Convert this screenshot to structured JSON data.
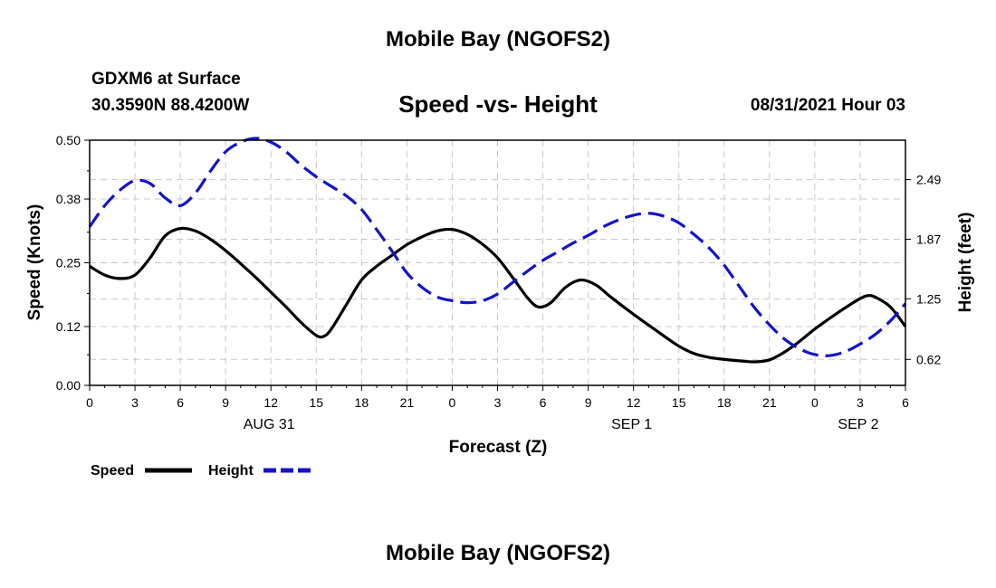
{
  "header": {
    "title": "Mobile Bay (NGOFS2)",
    "station": "GDXM6 at Surface",
    "coords": "30.3590N  88.4200W",
    "subtitle": "Speed -vs- Height",
    "datetime": "08/31/2021 Hour 03"
  },
  "footer": {
    "title": "Mobile Bay (NGOFS2)"
  },
  "chart_data": {
    "type": "line",
    "title": "Speed -vs- Height",
    "xlabel": "Forecast (Z)",
    "ylabel_left": "Speed (Knots)",
    "ylabel_right": "Height (feet)",
    "x_range": [
      0,
      54
    ],
    "x_unit": "hours from 08/31 00Z",
    "x_ticks": [
      {
        "h": 0,
        "label": "0"
      },
      {
        "h": 3,
        "label": "3"
      },
      {
        "h": 6,
        "label": "6"
      },
      {
        "h": 9,
        "label": "9"
      },
      {
        "h": 12,
        "label": "12"
      },
      {
        "h": 15,
        "label": "15"
      },
      {
        "h": 18,
        "label": "18"
      },
      {
        "h": 21,
        "label": "21"
      },
      {
        "h": 24,
        "label": "0"
      },
      {
        "h": 27,
        "label": "3"
      },
      {
        "h": 30,
        "label": "6"
      },
      {
        "h": 33,
        "label": "9"
      },
      {
        "h": 36,
        "label": "12"
      },
      {
        "h": 39,
        "label": "15"
      },
      {
        "h": 42,
        "label": "18"
      },
      {
        "h": 45,
        "label": "21"
      },
      {
        "h": 48,
        "label": "0"
      },
      {
        "h": 51,
        "label": "3"
      },
      {
        "h": 54,
        "label": "6"
      }
    ],
    "date_labels": [
      {
        "h": 12,
        "label": "AUG 31"
      },
      {
        "h": 36,
        "label": "SEP 1"
      },
      {
        "h": 51,
        "label": "SEP 2"
      }
    ],
    "y_left": {
      "range": [
        0,
        0.5
      ],
      "ticks": [
        "0.00",
        "0.12",
        "0.25",
        "0.38",
        "0.50"
      ]
    },
    "y_right": {
      "range": [
        0.35,
        2.9
      ],
      "ticks": [
        "0.62",
        "1.25",
        "1.87",
        "2.49"
      ]
    },
    "grid": true,
    "legend_position": "bottom-left",
    "series": [
      {
        "name": "Speed",
        "axis": "left",
        "color": "#000000",
        "style": "solid",
        "points": [
          [
            0,
            0.243
          ],
          [
            1,
            0.225
          ],
          [
            2,
            0.218
          ],
          [
            3,
            0.225
          ],
          [
            4,
            0.26
          ],
          [
            5,
            0.305
          ],
          [
            6,
            0.32
          ],
          [
            7,
            0.315
          ],
          [
            8,
            0.298
          ],
          [
            9,
            0.275
          ],
          [
            10,
            0.248
          ],
          [
            11,
            0.22
          ],
          [
            12,
            0.19
          ],
          [
            13,
            0.16
          ],
          [
            14,
            0.128
          ],
          [
            15,
            0.102
          ],
          [
            15.5,
            0.1
          ],
          [
            16,
            0.115
          ],
          [
            17,
            0.165
          ],
          [
            18,
            0.215
          ],
          [
            19,
            0.243
          ],
          [
            20,
            0.265
          ],
          [
            21,
            0.287
          ],
          [
            22,
            0.303
          ],
          [
            23,
            0.315
          ],
          [
            24,
            0.318
          ],
          [
            25,
            0.308
          ],
          [
            26,
            0.288
          ],
          [
            27,
            0.26
          ],
          [
            28,
            0.22
          ],
          [
            29,
            0.178
          ],
          [
            29.7,
            0.16
          ],
          [
            30.5,
            0.168
          ],
          [
            31.5,
            0.2
          ],
          [
            32.5,
            0.215
          ],
          [
            33.5,
            0.205
          ],
          [
            34.5,
            0.18
          ],
          [
            36,
            0.145
          ],
          [
            37.5,
            0.112
          ],
          [
            39,
            0.08
          ],
          [
            40,
            0.065
          ],
          [
            41,
            0.057
          ],
          [
            42,
            0.053
          ],
          [
            43,
            0.05
          ],
          [
            44,
            0.048
          ],
          [
            45,
            0.052
          ],
          [
            46,
            0.068
          ],
          [
            47,
            0.09
          ],
          [
            48,
            0.115
          ],
          [
            49,
            0.137
          ],
          [
            50,
            0.158
          ],
          [
            51,
            0.177
          ],
          [
            51.5,
            0.183
          ],
          [
            52,
            0.18
          ],
          [
            53,
            0.16
          ],
          [
            54,
            0.12
          ]
        ]
      },
      {
        "name": "Height",
        "axis": "right",
        "color": "#1414c8",
        "style": "dashed",
        "points": [
          [
            0,
            2.0
          ],
          [
            1,
            2.22
          ],
          [
            2,
            2.38
          ],
          [
            3,
            2.48
          ],
          [
            4,
            2.45
          ],
          [
            5,
            2.3
          ],
          [
            6,
            2.22
          ],
          [
            7,
            2.35
          ],
          [
            8,
            2.58
          ],
          [
            9,
            2.78
          ],
          [
            10,
            2.88
          ],
          [
            11,
            2.92
          ],
          [
            12,
            2.88
          ],
          [
            13,
            2.78
          ],
          [
            14,
            2.64
          ],
          [
            15,
            2.52
          ],
          [
            16,
            2.42
          ],
          [
            17,
            2.32
          ],
          [
            18,
            2.18
          ],
          [
            19,
            1.97
          ],
          [
            20,
            1.75
          ],
          [
            21,
            1.52
          ],
          [
            22,
            1.37
          ],
          [
            23,
            1.27
          ],
          [
            24,
            1.23
          ],
          [
            25,
            1.21
          ],
          [
            26,
            1.23
          ],
          [
            27,
            1.3
          ],
          [
            28,
            1.42
          ],
          [
            29,
            1.54
          ],
          [
            30,
            1.65
          ],
          [
            31,
            1.74
          ],
          [
            32,
            1.83
          ],
          [
            33,
            1.91
          ],
          [
            34,
            2.0
          ],
          [
            35,
            2.07
          ],
          [
            36,
            2.12
          ],
          [
            37,
            2.14
          ],
          [
            38,
            2.11
          ],
          [
            39,
            2.04
          ],
          [
            40,
            1.92
          ],
          [
            41,
            1.78
          ],
          [
            42,
            1.6
          ],
          [
            43,
            1.38
          ],
          [
            44,
            1.16
          ],
          [
            45,
            0.98
          ],
          [
            46,
            0.83
          ],
          [
            47,
            0.73
          ],
          [
            48,
            0.67
          ],
          [
            49,
            0.66
          ],
          [
            50,
            0.7
          ],
          [
            51,
            0.78
          ],
          [
            52,
            0.88
          ],
          [
            53,
            1.02
          ],
          [
            54,
            1.2
          ]
        ]
      }
    ]
  }
}
